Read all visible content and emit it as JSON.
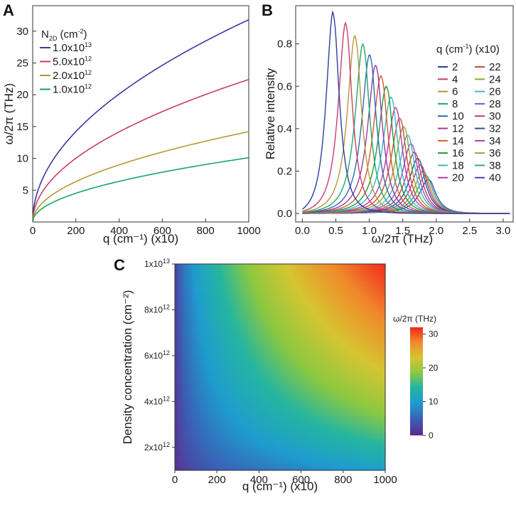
{
  "chart_data": [
    {
      "panel": "A",
      "type": "line",
      "xlabel": "q (cm⁻¹) (x10)",
      "ylabel": "ω/2π (THz)",
      "xlim": [
        0,
        1000
      ],
      "ylim": [
        0,
        34
      ],
      "xticks": [
        0,
        200,
        400,
        600,
        800,
        1000
      ],
      "yticks": [
        5,
        10,
        15,
        20,
        25,
        30
      ],
      "legend_title": "N",
      "legend_title_sub": "2D",
      "legend_title_unit": " (cm",
      "legend_title_sup": "-2",
      "legend_title_end": ")",
      "series": [
        {
          "name": "1.0x10",
          "exp": "13",
          "color": "#3a3aa0",
          "amplitude": 31.8,
          "final_value": 31.8
        },
        {
          "name": "5.0x10",
          "exp": "12",
          "color": "#c93b6a",
          "amplitude": 22.4,
          "final_value": 22.4
        },
        {
          "name": "2.0x10",
          "exp": "12",
          "color": "#b59a2e",
          "amplitude": 14.2,
          "final_value": 14.2
        },
        {
          "name": "1.0x10",
          "exp": "12",
          "color": "#17a765",
          "amplitude": 10.1,
          "final_value": 10.1
        }
      ]
    },
    {
      "panel": "B",
      "type": "line",
      "xlabel": "ω/2π (THz)",
      "ylabel": "Relative intensity",
      "xlim": [
        -0.1,
        3.15
      ],
      "ylim": [
        -0.04,
        0.98
      ],
      "xticks": [
        "0.0",
        "0.5",
        "1.0",
        "1.5",
        "2.0",
        "2.5",
        "3.0"
      ],
      "yticks": [
        "0.0",
        "0.2",
        "0.4",
        "0.6",
        "0.8"
      ],
      "legend_title": "q (cm",
      "legend_title_sup": "-1",
      "legend_title_end": ") (x10)",
      "series": [
        {
          "name": "2",
          "color": "#2d3e9c",
          "peak_x": 0.45,
          "peak_y": 0.95
        },
        {
          "name": "4",
          "color": "#cc3b6b",
          "peak_x": 0.64,
          "peak_y": 0.9
        },
        {
          "name": "6",
          "color": "#b7973a",
          "peak_x": 0.78,
          "peak_y": 0.84
        },
        {
          "name": "8",
          "color": "#1ea86a",
          "peak_x": 0.9,
          "peak_y": 0.8
        },
        {
          "name": "10",
          "color": "#2f6bb0",
          "peak_x": 1.0,
          "peak_y": 0.75
        },
        {
          "name": "12",
          "color": "#9a3aa6",
          "peak_x": 1.09,
          "peak_y": 0.7
        },
        {
          "name": "14",
          "color": "#c9602d",
          "peak_x": 1.17,
          "peak_y": 0.65
        },
        {
          "name": "16",
          "color": "#1f9a3a",
          "peak_x": 1.25,
          "peak_y": 0.6
        },
        {
          "name": "18",
          "color": "#3cb6c2",
          "peak_x": 1.32,
          "peak_y": 0.55
        },
        {
          "name": "20",
          "color": "#b83aa0",
          "peak_x": 1.39,
          "peak_y": 0.5
        },
        {
          "name": "22",
          "color": "#cf4a3a",
          "peak_x": 1.45,
          "peak_y": 0.45
        },
        {
          "name": "24",
          "color": "#8aa82f",
          "peak_x": 1.51,
          "peak_y": 0.41
        },
        {
          "name": "26",
          "color": "#39b7c9",
          "peak_x": 1.57,
          "peak_y": 0.37
        },
        {
          "name": "28",
          "color": "#8a55c4",
          "peak_x": 1.62,
          "peak_y": 0.33
        },
        {
          "name": "30",
          "color": "#c73a5c",
          "peak_x": 1.67,
          "peak_y": 0.29
        },
        {
          "name": "32",
          "color": "#2c4f94",
          "peak_x": 1.72,
          "peak_y": 0.26
        },
        {
          "name": "34",
          "color": "#b23a8f",
          "peak_x": 1.76,
          "peak_y": 0.23
        },
        {
          "name": "36",
          "color": "#a99a3a",
          "peak_x": 1.8,
          "peak_y": 0.2
        },
        {
          "name": "38",
          "color": "#2aa98e",
          "peak_x": 1.84,
          "peak_y": 0.18
        },
        {
          "name": "40",
          "color": "#3a4aa6",
          "peak_x": 1.88,
          "peak_y": 0.16
        }
      ]
    },
    {
      "panel": "C",
      "type": "heatmap",
      "xlabel": "q (cm⁻¹) (x10)",
      "ylabel": "Density concentration (cm⁻²)",
      "xlim": [
        0,
        1000
      ],
      "ylim": [
        1000000000000.0,
        10000000000000.0
      ],
      "xticks": [
        0,
        200,
        400,
        600,
        800,
        1000
      ],
      "yticks": [
        {
          "mant": "2x10",
          "exp": "12",
          "value": 2000000000000.0
        },
        {
          "mant": "4x10",
          "exp": "12",
          "value": 4000000000000.0
        },
        {
          "mant": "6x10",
          "exp": "12",
          "value": 6000000000000.0
        },
        {
          "mant": "8x10",
          "exp": "12",
          "value": 8000000000000.0
        },
        {
          "mant": "1x10",
          "exp": "13",
          "value": 10000000000000.0
        }
      ],
      "colorbar_title": "ω/2π (THz)",
      "colorbar_range": [
        0,
        32
      ],
      "colorbar_ticks": [
        0,
        10,
        20,
        30
      ],
      "z_max": 31.8
    }
  ]
}
